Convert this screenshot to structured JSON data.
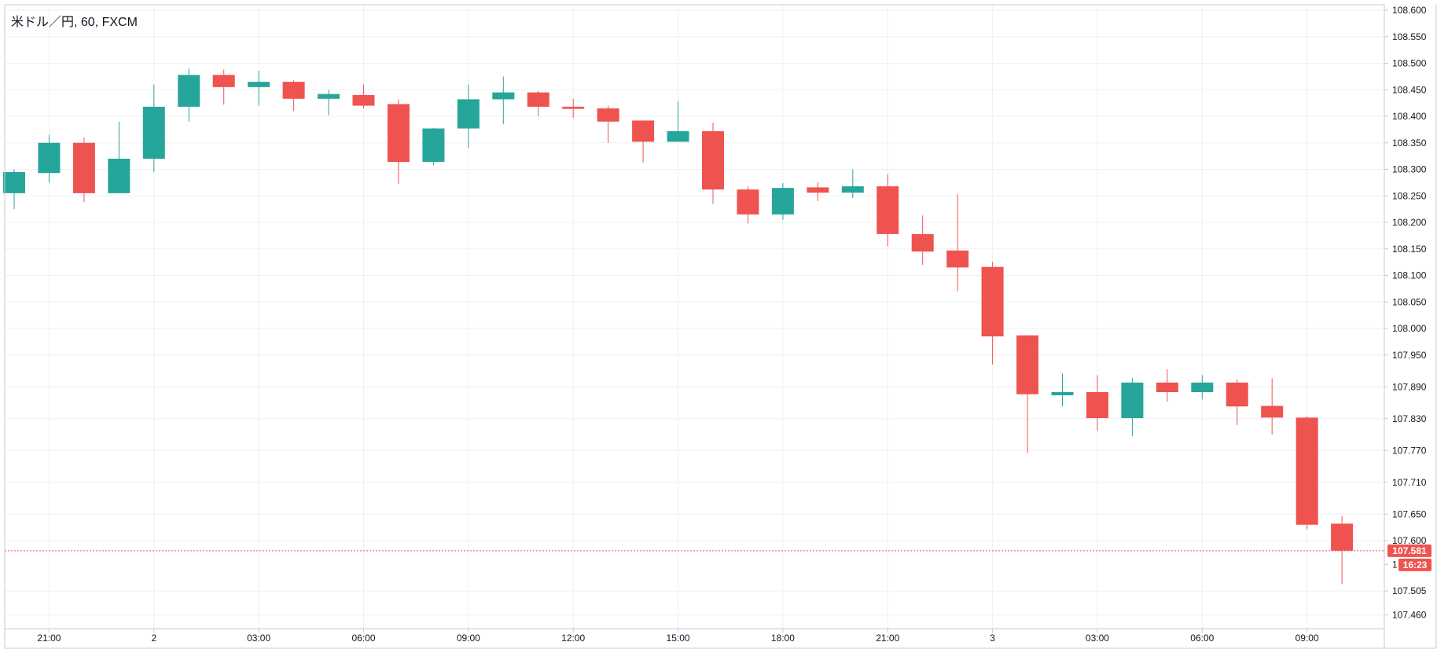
{
  "legend": "米ドル／円, 60, FXCM",
  "colors": {
    "up": "#26a69a",
    "down": "#ef5350",
    "grid": "#eef0f3",
    "frame": "#c6cad3",
    "price_line": "#ef5350",
    "tag_bg": "#ef5350",
    "tag_text": "#ffffff"
  },
  "chart_data": {
    "type": "candlestick",
    "title": "米ドル／円, 60, FXCM",
    "interval_minutes": 60,
    "candles": [
      {
        "o": 108.255,
        "h": 108.3,
        "l": 108.225,
        "c": 108.295
      },
      {
        "o": 108.293,
        "h": 108.365,
        "l": 108.275,
        "c": 108.35
      },
      {
        "o": 108.35,
        "h": 108.36,
        "l": 108.238,
        "c": 108.255
      },
      {
        "o": 108.255,
        "h": 108.39,
        "l": 108.255,
        "c": 108.32
      },
      {
        "o": 108.32,
        "h": 108.46,
        "l": 108.295,
        "c": 108.418
      },
      {
        "o": 108.418,
        "h": 108.49,
        "l": 108.39,
        "c": 108.478
      },
      {
        "o": 108.478,
        "h": 108.488,
        "l": 108.422,
        "c": 108.455
      },
      {
        "o": 108.455,
        "h": 108.486,
        "l": 108.42,
        "c": 108.465
      },
      {
        "o": 108.465,
        "h": 108.468,
        "l": 108.41,
        "c": 108.433
      },
      {
        "o": 108.433,
        "h": 108.45,
        "l": 108.402,
        "c": 108.442
      },
      {
        "o": 108.44,
        "h": 108.46,
        "l": 108.415,
        "c": 108.42
      },
      {
        "o": 108.423,
        "h": 108.432,
        "l": 108.273,
        "c": 108.314
      },
      {
        "o": 108.314,
        "h": 108.378,
        "l": 108.308,
        "c": 108.377
      },
      {
        "o": 108.377,
        "h": 108.46,
        "l": 108.34,
        "c": 108.432
      },
      {
        "o": 108.432,
        "h": 108.475,
        "l": 108.385,
        "c": 108.445
      },
      {
        "o": 108.445,
        "h": 108.448,
        "l": 108.4,
        "c": 108.418
      },
      {
        "o": 108.418,
        "h": 108.433,
        "l": 108.397,
        "c": 108.414
      },
      {
        "o": 108.415,
        "h": 108.42,
        "l": 108.35,
        "c": 108.39
      },
      {
        "o": 108.392,
        "h": 108.392,
        "l": 108.313,
        "c": 108.352
      },
      {
        "o": 108.352,
        "h": 108.428,
        "l": 108.352,
        "c": 108.372
      },
      {
        "o": 108.372,
        "h": 108.388,
        "l": 108.235,
        "c": 108.262
      },
      {
        "o": 108.262,
        "h": 108.268,
        "l": 108.198,
        "c": 108.215
      },
      {
        "o": 108.215,
        "h": 108.274,
        "l": 108.205,
        "c": 108.265
      },
      {
        "o": 108.266,
        "h": 108.276,
        "l": 108.24,
        "c": 108.256
      },
      {
        "o": 108.256,
        "h": 108.3,
        "l": 108.246,
        "c": 108.268
      },
      {
        "o": 108.268,
        "h": 108.291,
        "l": 108.155,
        "c": 108.178
      },
      {
        "o": 108.178,
        "h": 108.213,
        "l": 108.12,
        "c": 108.145
      },
      {
        "o": 108.147,
        "h": 108.253,
        "l": 108.07,
        "c": 108.115
      },
      {
        "o": 108.116,
        "h": 108.126,
        "l": 107.932,
        "c": 107.985
      },
      {
        "o": 107.987,
        "h": 107.987,
        "l": 107.765,
        "c": 107.876
      },
      {
        "o": 107.874,
        "h": 107.915,
        "l": 107.853,
        "c": 107.88
      },
      {
        "o": 107.88,
        "h": 107.912,
        "l": 107.807,
        "c": 107.831
      },
      {
        "o": 107.831,
        "h": 107.907,
        "l": 107.797,
        "c": 107.898
      },
      {
        "o": 107.898,
        "h": 107.923,
        "l": 107.862,
        "c": 107.88
      },
      {
        "o": 107.88,
        "h": 107.912,
        "l": 107.866,
        "c": 107.898
      },
      {
        "o": 107.898,
        "h": 107.904,
        "l": 107.818,
        "c": 107.853
      },
      {
        "o": 107.854,
        "h": 107.906,
        "l": 107.8,
        "c": 107.832
      },
      {
        "o": 107.832,
        "h": 107.834,
        "l": 107.621,
        "c": 107.63
      },
      {
        "o": 107.632,
        "h": 107.646,
        "l": 107.518,
        "c": 107.581
      }
    ],
    "y_ticks": [
      "108.600",
      "108.550",
      "108.500",
      "108.450",
      "108.400",
      "108.350",
      "108.300",
      "108.250",
      "108.200",
      "108.150",
      "108.100",
      "108.050",
      "108.000",
      "107.950",
      "107.890",
      "107.830",
      "107.770",
      "107.710",
      "107.650",
      "107.600",
      "107.505",
      "107.460"
    ],
    "y_ticks_partial": [
      {
        "label": "1",
        "value": 107.555
      }
    ],
    "x_ticks": [
      {
        "label": "21:00",
        "index": 1
      },
      {
        "label": "2",
        "index": 4
      },
      {
        "label": "03:00",
        "index": 7
      },
      {
        "label": "06:00",
        "index": 10
      },
      {
        "label": "09:00",
        "index": 13
      },
      {
        "label": "12:00",
        "index": 16
      },
      {
        "label": "15:00",
        "index": 19
      },
      {
        "label": "18:00",
        "index": 22
      },
      {
        "label": "21:00",
        "index": 25
      },
      {
        "label": "3",
        "index": 28
      },
      {
        "label": "03:00",
        "index": 31
      },
      {
        "label": "06:00",
        "index": 34
      },
      {
        "label": "09:00",
        "index": 37
      }
    ],
    "last_price": "107.581",
    "countdown": "16:23",
    "grid": true
  }
}
